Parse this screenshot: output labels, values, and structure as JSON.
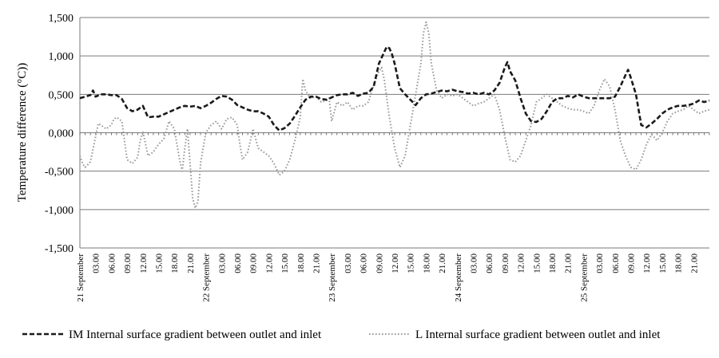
{
  "chart_data": {
    "type": "line",
    "title": "",
    "ylabel": "Temperature difference (°C))",
    "xlabel": "",
    "ylim": [
      -1.5,
      1.5
    ],
    "y_ticks": [
      {
        "value": 1.5,
        "label": "1,500"
      },
      {
        "value": 1.0,
        "label": "1,000"
      },
      {
        "value": 0.5,
        "label": "0,500"
      },
      {
        "value": 0.0,
        "label": "0,000"
      },
      {
        "value": -0.5,
        "label": "-0,500"
      },
      {
        "value": -1.0,
        "label": "-1,000"
      },
      {
        "value": -1.5,
        "label": "-1,500"
      }
    ],
    "grid": true,
    "x_unit": "hours since 21 September 00.00",
    "xlim": [
      0,
      120
    ],
    "x_ticks": [
      {
        "hour": 0,
        "label": "21 September"
      },
      {
        "hour": 3,
        "label": "03.00"
      },
      {
        "hour": 6,
        "label": "06.00"
      },
      {
        "hour": 9,
        "label": "09.00"
      },
      {
        "hour": 12,
        "label": "12.00"
      },
      {
        "hour": 15,
        "label": "15.00"
      },
      {
        "hour": 18,
        "label": "18.00"
      },
      {
        "hour": 21,
        "label": "21.00"
      },
      {
        "hour": 24,
        "label": "22 September"
      },
      {
        "hour": 27,
        "label": "03.00"
      },
      {
        "hour": 30,
        "label": "06.00"
      },
      {
        "hour": 33,
        "label": "09.00"
      },
      {
        "hour": 36,
        "label": "12.00"
      },
      {
        "hour": 39,
        "label": "15.00"
      },
      {
        "hour": 42,
        "label": "18.00"
      },
      {
        "hour": 45,
        "label": "21.00"
      },
      {
        "hour": 48,
        "label": "23 September"
      },
      {
        "hour": 51,
        "label": "03.00"
      },
      {
        "hour": 54,
        "label": "06.00"
      },
      {
        "hour": 57,
        "label": "09.00"
      },
      {
        "hour": 60,
        "label": "12.00"
      },
      {
        "hour": 63,
        "label": "15.00"
      },
      {
        "hour": 66,
        "label": "18.00"
      },
      {
        "hour": 69,
        "label": "21.00"
      },
      {
        "hour": 72,
        "label": "24 September"
      },
      {
        "hour": 75,
        "label": "03.00"
      },
      {
        "hour": 78,
        "label": "06.00"
      },
      {
        "hour": 81,
        "label": "09.00"
      },
      {
        "hour": 84,
        "label": "12.00"
      },
      {
        "hour": 87,
        "label": "15.00"
      },
      {
        "hour": 90,
        "label": "18.00"
      },
      {
        "hour": 93,
        "label": "21.00"
      },
      {
        "hour": 96,
        "label": "25 September"
      },
      {
        "hour": 99,
        "label": "03.00"
      },
      {
        "hour": 102,
        "label": "06.00"
      },
      {
        "hour": 105,
        "label": "09.00"
      },
      {
        "hour": 108,
        "label": "12.00"
      },
      {
        "hour": 111,
        "label": "15.00"
      },
      {
        "hour": 114,
        "label": "18.00"
      },
      {
        "hour": 117,
        "label": "21.00"
      }
    ],
    "legend_position": "bottom",
    "series": [
      {
        "name": "IM Internal surface gradient between outlet and inlet",
        "color": "#1a1a1a",
        "style": "dashed-bold",
        "points": [
          [
            0,
            0.45
          ],
          [
            1,
            0.47
          ],
          [
            2,
            0.49
          ],
          [
            2.5,
            0.55
          ],
          [
            3,
            0.47
          ],
          [
            4,
            0.5
          ],
          [
            5,
            0.5
          ],
          [
            6,
            0.49
          ],
          [
            7,
            0.49
          ],
          [
            8,
            0.44
          ],
          [
            9,
            0.32
          ],
          [
            10,
            0.28
          ],
          [
            11,
            0.3
          ],
          [
            12,
            0.35
          ],
          [
            13,
            0.2
          ],
          [
            14,
            0.21
          ],
          [
            15,
            0.21
          ],
          [
            16,
            0.24
          ],
          [
            17,
            0.27
          ],
          [
            18,
            0.3
          ],
          [
            19,
            0.33
          ],
          [
            20,
            0.35
          ],
          [
            21,
            0.34
          ],
          [
            22,
            0.35
          ],
          [
            23,
            0.32
          ],
          [
            24,
            0.35
          ],
          [
            25,
            0.39
          ],
          [
            26,
            0.44
          ],
          [
            27,
            0.48
          ],
          [
            28,
            0.47
          ],
          [
            29,
            0.43
          ],
          [
            30,
            0.36
          ],
          [
            31,
            0.33
          ],
          [
            32,
            0.3
          ],
          [
            33,
            0.28
          ],
          [
            34,
            0.28
          ],
          [
            35,
            0.25
          ],
          [
            36,
            0.21
          ],
          [
            37,
            0.1
          ],
          [
            38,
            0.03
          ],
          [
            39,
            0.06
          ],
          [
            40,
            0.12
          ],
          [
            41,
            0.22
          ],
          [
            42,
            0.33
          ],
          [
            43,
            0.43
          ],
          [
            44,
            0.47
          ],
          [
            45,
            0.47
          ],
          [
            46,
            0.44
          ],
          [
            47,
            0.43
          ],
          [
            48,
            0.46
          ],
          [
            49,
            0.49
          ],
          [
            50,
            0.5
          ],
          [
            51,
            0.5
          ],
          [
            52,
            0.52
          ],
          [
            53,
            0.48
          ],
          [
            54,
            0.51
          ],
          [
            55,
            0.52
          ],
          [
            56,
            0.6
          ],
          [
            57,
            0.9
          ],
          [
            58,
            1.05
          ],
          [
            58.5,
            1.12
          ],
          [
            59,
            1.1
          ],
          [
            59.5,
            1.02
          ],
          [
            60,
            0.9
          ],
          [
            61,
            0.58
          ],
          [
            62,
            0.5
          ],
          [
            63,
            0.43
          ],
          [
            64,
            0.36
          ],
          [
            65,
            0.45
          ],
          [
            66,
            0.5
          ],
          [
            67,
            0.51
          ],
          [
            68,
            0.53
          ],
          [
            69,
            0.55
          ],
          [
            70,
            0.54
          ],
          [
            71,
            0.56
          ],
          [
            72,
            0.54
          ],
          [
            73,
            0.53
          ],
          [
            74,
            0.51
          ],
          [
            75,
            0.52
          ],
          [
            76,
            0.5
          ],
          [
            77,
            0.52
          ],
          [
            78,
            0.5
          ],
          [
            79,
            0.55
          ],
          [
            80,
            0.65
          ],
          [
            81,
            0.85
          ],
          [
            81.5,
            0.92
          ],
          [
            82,
            0.8
          ],
          [
            83,
            0.68
          ],
          [
            84,
            0.45
          ],
          [
            85,
            0.25
          ],
          [
            86,
            0.15
          ],
          [
            87,
            0.14
          ],
          [
            88,
            0.18
          ],
          [
            89,
            0.28
          ],
          [
            90,
            0.4
          ],
          [
            91,
            0.45
          ],
          [
            92,
            0.45
          ],
          [
            93,
            0.48
          ],
          [
            94,
            0.46
          ],
          [
            95,
            0.5
          ],
          [
            96,
            0.47
          ],
          [
            97,
            0.45
          ],
          [
            98,
            0.45
          ],
          [
            99,
            0.45
          ],
          [
            100,
            0.45
          ],
          [
            101,
            0.45
          ],
          [
            102,
            0.47
          ],
          [
            103,
            0.6
          ],
          [
            104,
            0.75
          ],
          [
            104.5,
            0.82
          ],
          [
            105,
            0.72
          ],
          [
            106,
            0.5
          ],
          [
            106.5,
            0.3
          ],
          [
            107,
            0.1
          ],
          [
            108,
            0.07
          ],
          [
            109,
            0.12
          ],
          [
            110,
            0.18
          ],
          [
            111,
            0.25
          ],
          [
            112,
            0.3
          ],
          [
            113,
            0.33
          ],
          [
            114,
            0.35
          ],
          [
            115,
            0.35
          ],
          [
            116,
            0.36
          ],
          [
            117,
            0.38
          ],
          [
            118,
            0.42
          ],
          [
            119,
            0.4
          ],
          [
            120,
            0.42
          ]
        ]
      },
      {
        "name": "L Internal surface gradient between outlet and inlet",
        "color": "#9a9a9a",
        "style": "dotted",
        "points": [
          [
            0,
            -0.3
          ],
          [
            0.5,
            -0.4
          ],
          [
            1,
            -0.45
          ],
          [
            2,
            -0.38
          ],
          [
            3,
            -0.05
          ],
          [
            3.5,
            0.12
          ],
          [
            4,
            0.1
          ],
          [
            5,
            0.05
          ],
          [
            6,
            0.1
          ],
          [
            6.5,
            0.18
          ],
          [
            7,
            0.2
          ],
          [
            8,
            0.15
          ],
          [
            8.5,
            -0.1
          ],
          [
            9,
            -0.35
          ],
          [
            10,
            -0.4
          ],
          [
            11,
            -0.32
          ],
          [
            11.5,
            -0.1
          ],
          [
            12,
            0.02
          ],
          [
            13,
            -0.3
          ],
          [
            14,
            -0.25
          ],
          [
            15,
            -0.15
          ],
          [
            16,
            -0.08
          ],
          [
            17,
            0.15
          ],
          [
            18,
            0.05
          ],
          [
            19,
            -0.35
          ],
          [
            19.5,
            -0.5
          ],
          [
            20,
            -0.2
          ],
          [
            20.5,
            0.05
          ],
          [
            21,
            -0.4
          ],
          [
            21.5,
            -0.85
          ],
          [
            22,
            -0.98
          ],
          [
            22.5,
            -0.9
          ],
          [
            23,
            -0.4
          ],
          [
            24,
            0.0
          ],
          [
            25,
            0.1
          ],
          [
            26,
            0.15
          ],
          [
            27,
            0.05
          ],
          [
            28,
            0.18
          ],
          [
            29,
            0.2
          ],
          [
            30,
            0.1
          ],
          [
            30.5,
            -0.15
          ],
          [
            31,
            -0.35
          ],
          [
            32,
            -0.25
          ],
          [
            33,
            0.05
          ],
          [
            34,
            -0.2
          ],
          [
            35,
            -0.25
          ],
          [
            36,
            -0.3
          ],
          [
            37,
            -0.4
          ],
          [
            38,
            -0.55
          ],
          [
            39,
            -0.5
          ],
          [
            40,
            -0.35
          ],
          [
            41,
            -0.1
          ],
          [
            42,
            0.2
          ],
          [
            42.5,
            0.7
          ],
          [
            43,
            0.55
          ],
          [
            44,
            0.45
          ],
          [
            45,
            0.47
          ],
          [
            46,
            0.4
          ],
          [
            47,
            0.42
          ],
          [
            47.5,
            0.45
          ],
          [
            48,
            0.15
          ],
          [
            49,
            0.4
          ],
          [
            50,
            0.35
          ],
          [
            51,
            0.4
          ],
          [
            52,
            0.3
          ],
          [
            53,
            0.35
          ],
          [
            54,
            0.35
          ],
          [
            55,
            0.4
          ],
          [
            56,
            0.62
          ],
          [
            57,
            0.8
          ],
          [
            57.5,
            0.85
          ],
          [
            58,
            0.7
          ],
          [
            59,
            0.2
          ],
          [
            60,
            -0.2
          ],
          [
            61,
            -0.45
          ],
          [
            62,
            -0.3
          ],
          [
            63,
            0.1
          ],
          [
            64,
            0.5
          ],
          [
            65,
            0.9
          ],
          [
            65.5,
            1.3
          ],
          [
            66,
            1.44
          ],
          [
            66.5,
            1.3
          ],
          [
            67,
            0.9
          ],
          [
            68,
            0.55
          ],
          [
            69,
            0.45
          ],
          [
            70,
            0.5
          ],
          [
            71,
            0.48
          ],
          [
            72,
            0.5
          ],
          [
            73,
            0.45
          ],
          [
            74,
            0.4
          ],
          [
            75,
            0.35
          ],
          [
            76,
            0.38
          ],
          [
            77,
            0.4
          ],
          [
            78,
            0.45
          ],
          [
            79,
            0.5
          ],
          [
            80,
            0.3
          ],
          [
            81,
            -0.05
          ],
          [
            82,
            -0.35
          ],
          [
            83,
            -0.38
          ],
          [
            84,
            -0.3
          ],
          [
            85,
            -0.1
          ],
          [
            86,
            0.1
          ],
          [
            87,
            0.4
          ],
          [
            88,
            0.45
          ],
          [
            89,
            0.5
          ],
          [
            90,
            0.45
          ],
          [
            91,
            0.4
          ],
          [
            92,
            0.35
          ],
          [
            93,
            0.32
          ],
          [
            94,
            0.3
          ],
          [
            95,
            0.3
          ],
          [
            96,
            0.28
          ],
          [
            97,
            0.25
          ],
          [
            98,
            0.35
          ],
          [
            99,
            0.55
          ],
          [
            100,
            0.7
          ],
          [
            101,
            0.6
          ],
          [
            102,
            0.3
          ],
          [
            103,
            -0.1
          ],
          [
            104,
            -0.3
          ],
          [
            105,
            -0.45
          ],
          [
            106,
            -0.48
          ],
          [
            107,
            -0.35
          ],
          [
            108,
            -0.15
          ],
          [
            109,
            -0.02
          ],
          [
            110,
            -0.1
          ],
          [
            111,
            0.0
          ],
          [
            112,
            0.15
          ],
          [
            113,
            0.25
          ],
          [
            114,
            0.28
          ],
          [
            115,
            0.3
          ],
          [
            116,
            0.35
          ],
          [
            117,
            0.3
          ],
          [
            118,
            0.25
          ],
          [
            119,
            0.28
          ],
          [
            120,
            0.3
          ]
        ]
      }
    ]
  }
}
